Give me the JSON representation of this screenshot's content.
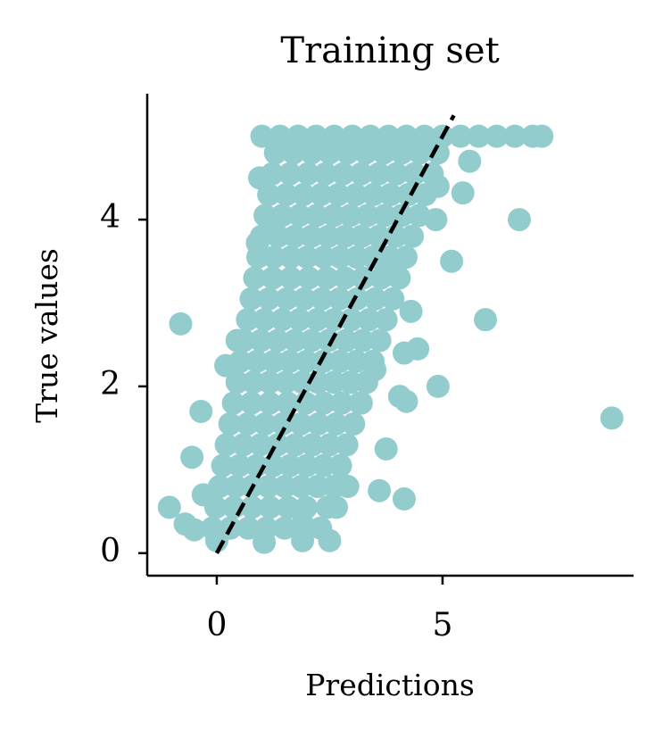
{
  "chart_data": {
    "type": "scatter",
    "title": "Training set",
    "xlabel": "Predictions",
    "ylabel": "True values",
    "color": "#92cccd",
    "xlim": [
      -1.54,
      9.23
    ],
    "ylim": [
      -0.27,
      5.51
    ],
    "xticks": [
      0,
      5
    ],
    "yticks": [
      0,
      2,
      4
    ],
    "reference_line": {
      "x": [
        0,
        5.25
      ],
      "y": [
        0,
        5.25
      ],
      "color": "#000000"
    },
    "x": [
      -0.1,
      0.3,
      0.7,
      1.1,
      1.5,
      1.9,
      2.3,
      -0.02,
      0.38,
      0.78,
      1.18,
      1.58,
      1.98,
      2.45,
      0.06,
      0.42,
      0.78,
      1.14,
      1.51,
      1.87,
      2.23,
      2.59,
      0.13,
      0.5,
      0.88,
      1.25,
      1.62,
      1.99,
      2.37,
      2.74,
      0.21,
      0.59,
      0.97,
      1.35,
      1.74,
      2.12,
      2.5,
      2.88,
      0.29,
      0.68,
      1.07,
      1.46,
      1.86,
      2.25,
      2.64,
      3.03,
      0.37,
      0.77,
      1.17,
      1.57,
      1.97,
      2.37,
      2.77,
      3.17,
      0.45,
      0.81,
      1.17,
      1.53,
      1.89,
      2.24,
      2.6,
      2.96,
      3.32,
      0.52,
      0.89,
      1.26,
      1.62,
      1.99,
      2.36,
      2.73,
      3.09,
      3.46,
      0.6,
      0.98,
      1.35,
      1.73,
      2.1,
      2.48,
      2.86,
      3.23,
      3.61,
      0.68,
      1.06,
      1.45,
      1.83,
      2.22,
      2.6,
      2.98,
      3.37,
      3.75,
      0.76,
      1.15,
      1.55,
      1.94,
      2.33,
      2.72,
      3.11,
      3.51,
      3.9,
      0.84,
      1.24,
      1.64,
      2.04,
      2.44,
      2.84,
      3.24,
      3.64,
      4.04,
      0.91,
      1.27,
      1.64,
      2.0,
      2.37,
      2.73,
      3.1,
      3.46,
      3.82,
      4.19,
      0.99,
      1.36,
      1.73,
      2.1,
      2.47,
      2.84,
      3.21,
      3.59,
      3.96,
      4.33,
      1.07,
      1.45,
      1.83,
      2.21,
      2.59,
      2.96,
      3.34,
      3.72,
      4.1,
      4.48,
      1.15,
      1.54,
      1.92,
      2.31,
      2.69,
      3.08,
      3.47,
      3.85,
      4.24,
      4.62,
      1.23,
      1.62,
      2.02,
      2.41,
      2.8,
      3.2,
      3.59,
      3.98,
      4.38,
      4.77,
      1.3,
      1.7,
      2.1,
      2.5,
      2.9,
      3.3,
      3.7,
      4.1,
      4.5,
      4.9,
      1.0,
      1.4,
      1.8,
      2.2,
      2.6,
      3.0,
      3.4,
      3.8,
      4.2,
      4.6,
      5.0,
      5.4,
      5.8,
      6.2,
      6.6,
      7.0,
      7.2,
      -0.8,
      -1.05,
      -0.35,
      -0.55,
      -0.7,
      -0.5,
      8.75,
      6.7,
      5.95,
      5.2,
      4.9,
      4.45,
      4.2,
      4.05,
      4.15,
      3.6,
      3.75,
      2.5,
      1.9,
      1.05,
      0,
      5.6,
      5.45,
      4.85,
      4.9,
      0.9,
      0.95,
      1.2,
      4.3,
      4.15,
      3.85,
      3.95,
      -0.3,
      2.9,
      2.65,
      1.9,
      0.2,
      0.45,
      3.2,
      3.5
    ],
    "y": [
      0.3,
      0.3,
      0.3,
      0.3,
      0.3,
      0.3,
      0.3,
      0.55,
      0.55,
      0.55,
      0.55,
      0.55,
      0.55,
      0.55,
      0.8,
      0.8,
      0.8,
      0.8,
      0.8,
      0.8,
      0.8,
      0.8,
      1.05,
      1.05,
      1.05,
      1.05,
      1.05,
      1.05,
      1.05,
      1.05,
      1.3,
      1.3,
      1.3,
      1.3,
      1.3,
      1.3,
      1.3,
      1.3,
      1.55,
      1.55,
      1.55,
      1.55,
      1.55,
      1.55,
      1.55,
      1.55,
      1.8,
      1.8,
      1.8,
      1.8,
      1.8,
      1.8,
      1.8,
      1.8,
      2.05,
      2.05,
      2.05,
      2.05,
      2.05,
      2.05,
      2.05,
      2.05,
      2.05,
      2.3,
      2.3,
      2.3,
      2.3,
      2.3,
      2.3,
      2.3,
      2.3,
      2.3,
      2.55,
      2.55,
      2.55,
      2.55,
      2.55,
      2.55,
      2.55,
      2.55,
      2.55,
      2.8,
      2.8,
      2.8,
      2.8,
      2.8,
      2.8,
      2.8,
      2.8,
      2.8,
      3.05,
      3.05,
      3.05,
      3.05,
      3.05,
      3.05,
      3.05,
      3.05,
      3.05,
      3.3,
      3.3,
      3.3,
      3.3,
      3.3,
      3.3,
      3.3,
      3.3,
      3.3,
      3.55,
      3.55,
      3.55,
      3.55,
      3.55,
      3.55,
      3.55,
      3.55,
      3.55,
      3.55,
      3.8,
      3.8,
      3.8,
      3.8,
      3.8,
      3.8,
      3.8,
      3.8,
      3.8,
      3.8,
      4.05,
      4.05,
      4.05,
      4.05,
      4.05,
      4.05,
      4.05,
      4.05,
      4.05,
      4.05,
      4.3,
      4.3,
      4.3,
      4.3,
      4.3,
      4.3,
      4.3,
      4.3,
      4.3,
      4.3,
      4.55,
      4.55,
      4.55,
      4.55,
      4.55,
      4.55,
      4.55,
      4.55,
      4.55,
      4.55,
      4.8,
      4.8,
      4.8,
      4.8,
      4.8,
      4.8,
      4.8,
      4.8,
      4.8,
      4.8,
      5.0,
      5.0,
      5.0,
      5.0,
      5.0,
      5.0,
      5.0,
      5.0,
      5.0,
      5.0,
      5.0,
      5.0,
      5.0,
      5.0,
      5.0,
      5.0,
      5.0,
      2.75,
      0.55,
      1.7,
      1.15,
      0.35,
      0.28,
      1.62,
      4.0,
      2.8,
      3.5,
      2.0,
      2.45,
      1.82,
      1.88,
      0.65,
      0.75,
      1.25,
      0.15,
      0.15,
      0.13,
      0.15,
      4.7,
      4.32,
      4.0,
      4.4,
      3.72,
      4.5,
      4.0,
      2.9,
      2.4,
      3.5,
      3.4,
      0.7,
      0.8,
      0.55,
      0.35,
      2.25,
      2.55,
      1.8,
      2.2
    ]
  }
}
